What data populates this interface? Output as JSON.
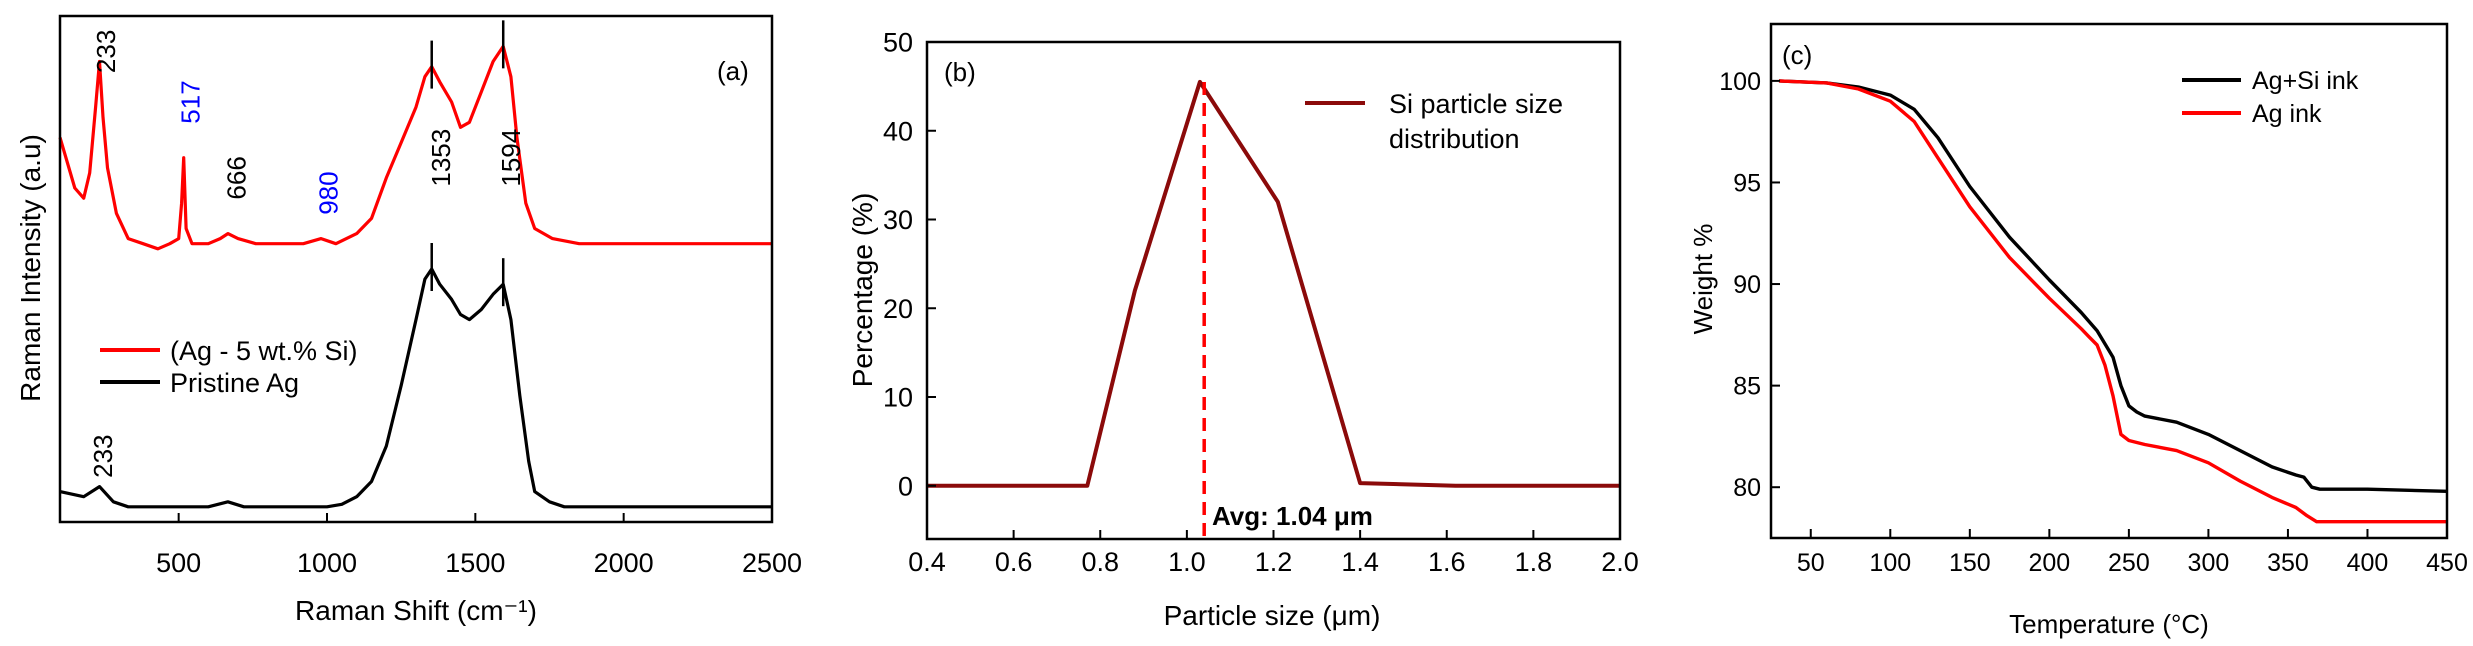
{
  "chart_data": [
    {
      "id": "a",
      "type": "line",
      "panel_label": "(a)",
      "title": "",
      "xlabel": "Raman Shift (cm⁻¹)",
      "ylabel": "Raman Intensity (a.u)",
      "xlim": [
        100,
        2500
      ],
      "ylim": [
        0,
        100
      ],
      "xticks": [
        500,
        1000,
        1500,
        2000,
        2500
      ],
      "xtick_labels": [
        "500",
        "1000",
        "1500",
        "2000",
        "2500"
      ],
      "legend": {
        "position": "middle-left"
      },
      "series": [
        {
          "name": "(Ag - 5 wt.% Si)",
          "color": "#ff0000",
          "x": [
            100,
            150,
            180,
            200,
            220,
            233,
            245,
            260,
            290,
            330,
            380,
            430,
            470,
            500,
            510,
            517,
            525,
            545,
            600,
            640,
            666,
            700,
            760,
            850,
            920,
            980,
            1030,
            1100,
            1150,
            1200,
            1250,
            1300,
            1330,
            1353,
            1380,
            1420,
            1450,
            1480,
            1520,
            1560,
            1594,
            1620,
            1640,
            1670,
            1700,
            1760,
            1850,
            2000,
            2200,
            2500
          ],
          "y": [
            76,
            66,
            64,
            69,
            82,
            91,
            80,
            70,
            61,
            56,
            55,
            54,
            55,
            56,
            63,
            72,
            58,
            55,
            55,
            56,
            57,
            56,
            55,
            55,
            55,
            56,
            55,
            57,
            60,
            68,
            75,
            82,
            88,
            90,
            87,
            83,
            78,
            79,
            85,
            91,
            94,
            88,
            76,
            63,
            58,
            56,
            55,
            55,
            55,
            55
          ]
        },
        {
          "name": "Pristine Ag",
          "color": "#000000",
          "x": [
            100,
            180,
            233,
            280,
            330,
            400,
            500,
            600,
            666,
            720,
            800,
            900,
            1000,
            1050,
            1100,
            1150,
            1200,
            1250,
            1300,
            1330,
            1353,
            1380,
            1420,
            1450,
            1480,
            1520,
            1560,
            1594,
            1620,
            1650,
            1680,
            1700,
            1750,
            1800,
            2000,
            2200,
            2500
          ],
          "y": [
            6,
            5,
            7,
            4,
            3,
            3,
            3,
            3,
            4,
            3,
            3,
            3,
            3,
            3.5,
            5,
            8,
            15,
            27,
            40,
            48,
            50,
            47,
            44,
            41,
            40,
            42,
            45,
            47,
            40,
            25,
            12,
            6,
            4,
            3,
            3,
            3,
            3
          ]
        }
      ],
      "peak_markers": [
        {
          "series": "(Ag - 5 wt.% Si)",
          "x": 1353,
          "y": 90
        },
        {
          "series": "(Ag - 5 wt.% Si)",
          "x": 1594,
          "y": 94
        },
        {
          "series": "Pristine Ag",
          "x": 1353,
          "y": 50
        },
        {
          "series": "Pristine Ag",
          "x": 1594,
          "y": 47
        }
      ],
      "annotations": [
        {
          "text": "233",
          "x": 285,
          "y": 93,
          "color": "#000000",
          "rotate": true
        },
        {
          "text": "517",
          "x": 570,
          "y": 83,
          "color": "#0000ff",
          "rotate": true
        },
        {
          "text": "666",
          "x": 725,
          "y": 68,
          "color": "#000000",
          "rotate": true
        },
        {
          "text": "980",
          "x": 1035,
          "y": 65,
          "color": "#0000ff",
          "rotate": true
        },
        {
          "text": "1353",
          "x": 1415,
          "y": 72,
          "color": "#000000",
          "rotate": true
        },
        {
          "text": "1594",
          "x": 1650,
          "y": 72,
          "color": "#000000",
          "rotate": true
        },
        {
          "text": "233",
          "x": 275,
          "y": 13,
          "color": "#000000",
          "rotate": true
        }
      ]
    },
    {
      "id": "b",
      "type": "line",
      "panel_label": "(b)",
      "title": "",
      "xlabel": "Particle size (μm)",
      "ylabel": "Percentage (%)",
      "xlim": [
        0.4,
        2.0
      ],
      "ylim": [
        -6,
        50
      ],
      "xticks": [
        0.4,
        0.6,
        0.8,
        1.0,
        1.2,
        1.4,
        1.6,
        1.8,
        2.0
      ],
      "xtick_labels": [
        "0.4",
        "0.6",
        "0.8",
        "1.0",
        "1.2",
        "1.4",
        "1.6",
        "1.8",
        "2.0"
      ],
      "yticks": [
        0,
        10,
        20,
        30,
        40,
        50
      ],
      "ytick_labels": [
        "0",
        "10",
        "20",
        "30",
        "40",
        "50"
      ],
      "legend": {
        "position": "top-right"
      },
      "series": [
        {
          "name": "Si particle size distribution",
          "legend_lines": [
            "Si particle size",
            "distribution"
          ],
          "color": "#8b0a0a",
          "x": [
            0.4,
            0.77,
            0.88,
            1.03,
            1.21,
            1.4,
            1.62,
            2.0
          ],
          "y": [
            0,
            0,
            22,
            45.5,
            32,
            0.3,
            0,
            0
          ]
        }
      ],
      "average_line": {
        "x": 1.04,
        "color": "#ff0000",
        "label": "Avg: 1.04 μm"
      }
    },
    {
      "id": "c",
      "type": "line",
      "panel_label": "(c)",
      "title": "",
      "xlabel": "Temperature (°C)",
      "ylabel": "Weight %",
      "xlim": [
        25,
        450
      ],
      "ylim": [
        77.5,
        102.8
      ],
      "xticks": [
        50,
        100,
        150,
        200,
        250,
        300,
        350,
        400,
        450
      ],
      "xtick_labels": [
        "50",
        "100",
        "150",
        "200",
        "250",
        "300",
        "350",
        "400",
        "450"
      ],
      "yticks": [
        80,
        85,
        90,
        95,
        100
      ],
      "ytick_labels": [
        "80",
        "85",
        "90",
        "95",
        "100"
      ],
      "legend": {
        "position": "top-right"
      },
      "series": [
        {
          "name": "Ag+Si ink",
          "color": "#000000",
          "x": [
            30,
            60,
            80,
            100,
            115,
            130,
            150,
            175,
            200,
            220,
            230,
            240,
            245,
            250,
            255,
            260,
            280,
            300,
            320,
            340,
            355,
            360,
            365,
            370,
            400,
            450
          ],
          "y": [
            100,
            99.9,
            99.7,
            99.3,
            98.6,
            97.2,
            94.8,
            92.3,
            90.2,
            88.6,
            87.7,
            86.4,
            85.0,
            84.0,
            83.7,
            83.5,
            83.2,
            82.6,
            81.8,
            81.0,
            80.6,
            80.5,
            80.0,
            79.9,
            79.9,
            79.8
          ]
        },
        {
          "name": "Ag ink",
          "color": "#ff0000",
          "x": [
            30,
            60,
            80,
            100,
            115,
            130,
            150,
            175,
            200,
            220,
            225,
            230,
            235,
            240,
            245,
            250,
            255,
            260,
            280,
            300,
            320,
            340,
            355,
            362,
            368,
            375,
            400,
            450
          ],
          "y": [
            100,
            99.9,
            99.6,
            99.0,
            98.0,
            96.2,
            93.8,
            91.3,
            89.3,
            87.8,
            87.4,
            87.0,
            86.0,
            84.5,
            82.6,
            82.3,
            82.2,
            82.1,
            81.8,
            81.2,
            80.3,
            79.5,
            79.0,
            78.6,
            78.3,
            78.3,
            78.3,
            78.3
          ]
        }
      ]
    }
  ]
}
